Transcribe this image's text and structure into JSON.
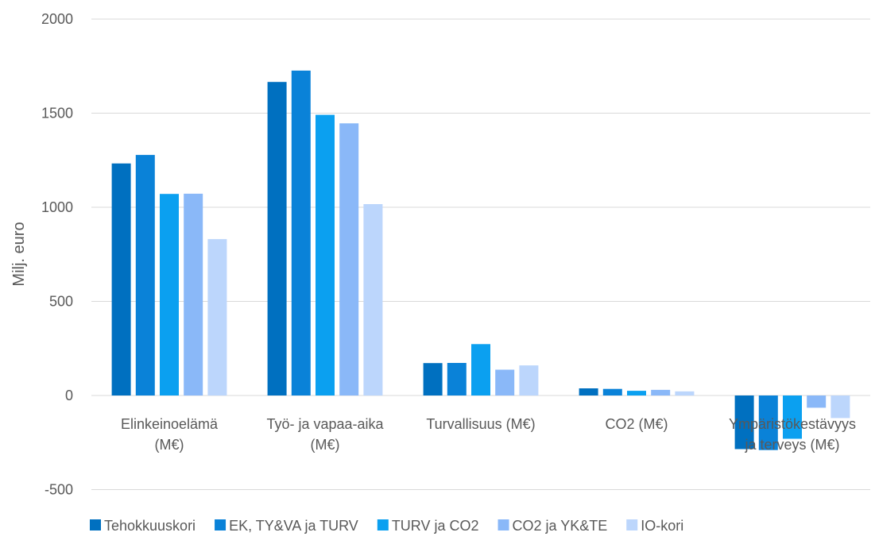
{
  "chart_data": {
    "type": "bar",
    "ylabel": "Milj. euro",
    "ylim": [
      -500,
      2000
    ],
    "yticks": [
      2000,
      1500,
      1000,
      500,
      0,
      -500
    ],
    "grid": true,
    "legend_position": "bottom",
    "categories": [
      [
        "Elinkeinoelämä",
        "(M€)"
      ],
      [
        "Työ- ja vapaa-aika",
        "(M€)"
      ],
      [
        "Turvallisuus (M€)"
      ],
      [
        "CO2 (M€)"
      ],
      [
        "Ympäristökestävyys",
        "ja terveys (M€)"
      ]
    ],
    "series": [
      {
        "name": "Tehokkuuskori",
        "color": "#0070C0",
        "values": [
          1233,
          1666,
          172,
          38,
          -285
        ]
      },
      {
        "name": "EK, TY&VA ja TURV",
        "color": "#0A82D8",
        "values": [
          1278,
          1726,
          173,
          35,
          -290
        ]
      },
      {
        "name": "TURV ja CO2",
        "color": "#0BA0F0",
        "values": [
          1071,
          1491,
          273,
          25,
          -230
        ]
      },
      {
        "name": "CO2 ja YK&TE",
        "color": "#8AB8F8",
        "values": [
          1072,
          1446,
          137,
          30,
          -65
        ]
      },
      {
        "name": "IO-kori",
        "color": "#BCD6FC",
        "values": [
          831,
          1017,
          160,
          22,
          -120
        ]
      }
    ]
  }
}
